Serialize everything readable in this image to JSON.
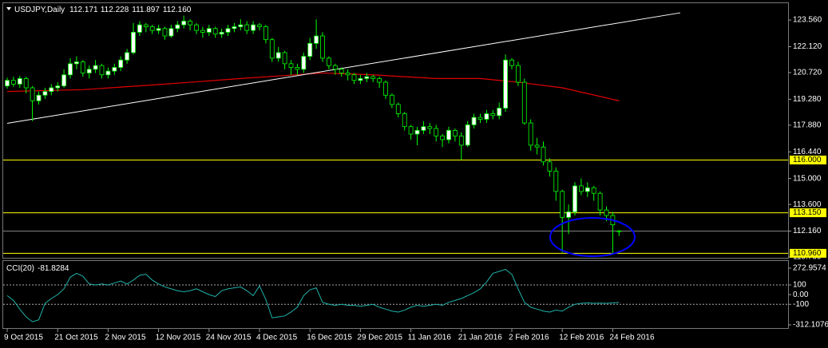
{
  "chart_data": {
    "type": "candlestick",
    "symbol": "USDJPY,Daily",
    "header_ohlc": [
      "112.171",
      "112.228",
      "111.897",
      "112.160"
    ],
    "categories": [
      "9 Oct 2015",
      null,
      null,
      null,
      null,
      null,
      null,
      null,
      "21 Oct 2015",
      null,
      null,
      null,
      null,
      null,
      null,
      null,
      "2 Nov 2015",
      null,
      null,
      null,
      null,
      null,
      null,
      null,
      "12 Nov 2015",
      null,
      null,
      null,
      null,
      null,
      null,
      null,
      "24 Nov 2015",
      null,
      null,
      null,
      null,
      null,
      null,
      null,
      "4 Dec 2015",
      null,
      null,
      null,
      null,
      null,
      null,
      null,
      "16 Dec 2015",
      null,
      null,
      null,
      null,
      null,
      null,
      null,
      "29 Dec 2015",
      null,
      null,
      null,
      null,
      null,
      null,
      null,
      "11 Jan 2016",
      null,
      null,
      null,
      null,
      null,
      null,
      null,
      "21 Jan 2016",
      null,
      null,
      null,
      null,
      null,
      null,
      null,
      "2 Feb 2016",
      null,
      null,
      null,
      null,
      null,
      null,
      null,
      "12 Feb 2016",
      null,
      null,
      null,
      null,
      null,
      null,
      null,
      "24 Feb 2016",
      null
    ],
    "candles": [
      [
        120.0,
        120.45,
        119.85,
        120.3
      ],
      [
        120.3,
        120.5,
        119.95,
        120.1
      ],
      [
        120.1,
        120.55,
        119.9,
        120.4
      ],
      [
        120.4,
        120.5,
        119.6,
        119.9
      ],
      [
        119.9,
        120.0,
        118.1,
        119.2
      ],
      [
        119.2,
        119.7,
        119.0,
        119.5
      ],
      [
        119.5,
        119.9,
        119.3,
        119.7
      ],
      [
        119.7,
        120.1,
        119.5,
        119.9
      ],
      [
        119.9,
        120.2,
        119.7,
        120.0
      ],
      [
        120.0,
        120.9,
        119.9,
        120.6
      ],
      [
        120.6,
        121.5,
        120.4,
        121.2
      ],
      [
        121.2,
        121.6,
        120.9,
        121.3
      ],
      [
        121.3,
        121.4,
        120.5,
        120.7
      ],
      [
        120.7,
        121.1,
        120.4,
        120.9
      ],
      [
        120.9,
        121.4,
        120.7,
        121.1
      ],
      [
        121.1,
        121.2,
        120.4,
        120.6
      ],
      [
        120.6,
        121.0,
        120.4,
        120.8
      ],
      [
        120.8,
        121.2,
        120.6,
        121.0
      ],
      [
        121.0,
        121.6,
        120.8,
        121.4
      ],
      [
        121.4,
        122.0,
        121.2,
        121.8
      ],
      [
        121.8,
        123.4,
        121.7,
        122.9
      ],
      [
        122.9,
        123.5,
        122.7,
        123.3
      ],
      [
        123.3,
        123.4,
        122.9,
        123.2
      ],
      [
        123.2,
        123.3,
        122.8,
        123.0
      ],
      [
        123.0,
        123.3,
        122.8,
        123.1
      ],
      [
        123.1,
        123.2,
        122.5,
        122.7
      ],
      [
        122.7,
        123.3,
        122.6,
        123.1
      ],
      [
        123.1,
        123.5,
        122.9,
        123.3
      ],
      [
        123.3,
        123.8,
        123.1,
        123.5
      ],
      [
        123.5,
        123.6,
        123.0,
        123.3
      ],
      [
        123.3,
        123.4,
        122.8,
        123.0
      ],
      [
        123.0,
        123.2,
        122.6,
        122.9
      ],
      [
        122.9,
        123.3,
        122.7,
        123.1
      ],
      [
        123.1,
        123.2,
        122.6,
        122.8
      ],
      [
        122.8,
        123.1,
        122.6,
        122.9
      ],
      [
        122.9,
        123.3,
        122.7,
        123.1
      ],
      [
        123.1,
        123.4,
        122.9,
        123.2
      ],
      [
        123.2,
        123.6,
        123.0,
        123.3
      ],
      [
        123.3,
        123.5,
        122.8,
        123.0
      ],
      [
        123.0,
        123.5,
        122.8,
        123.3
      ],
      [
        123.3,
        123.4,
        123.0,
        123.2
      ],
      [
        123.2,
        123.3,
        122.3,
        122.5
      ],
      [
        122.5,
        122.6,
        121.3,
        121.5
      ],
      [
        121.5,
        122.1,
        121.3,
        121.8
      ],
      [
        121.8,
        121.9,
        120.9,
        121.2
      ],
      [
        121.2,
        121.4,
        120.6,
        121.0
      ],
      [
        121.0,
        121.2,
        120.6,
        120.9
      ],
      [
        120.9,
        121.8,
        120.7,
        121.6
      ],
      [
        121.6,
        122.6,
        121.4,
        122.3
      ],
      [
        122.3,
        123.6,
        122.0,
        122.7
      ],
      [
        122.7,
        122.9,
        121.3,
        121.5
      ],
      [
        121.5,
        121.6,
        120.9,
        121.1
      ],
      [
        121.1,
        121.2,
        120.6,
        120.9
      ],
      [
        120.9,
        121.0,
        120.5,
        120.7
      ],
      [
        120.7,
        120.9,
        120.3,
        120.6
      ],
      [
        120.6,
        120.7,
        120.1,
        120.3
      ],
      [
        120.3,
        120.6,
        120.1,
        120.4
      ],
      [
        120.4,
        120.7,
        120.2,
        120.5
      ],
      [
        120.5,
        120.6,
        120.2,
        120.4
      ],
      [
        120.4,
        120.5,
        119.9,
        120.2
      ],
      [
        120.2,
        120.3,
        119.3,
        119.5
      ],
      [
        119.5,
        119.6,
        118.8,
        119.0
      ],
      [
        119.0,
        119.1,
        118.3,
        118.5
      ],
      [
        118.5,
        118.6,
        117.6,
        117.8
      ],
      [
        117.8,
        117.9,
        117.1,
        117.4
      ],
      [
        117.4,
        117.8,
        116.8,
        117.6
      ],
      [
        117.6,
        118.1,
        117.4,
        117.8
      ],
      [
        117.8,
        118.0,
        117.4,
        117.7
      ],
      [
        117.7,
        117.9,
        117.0,
        117.3
      ],
      [
        117.3,
        117.4,
        116.7,
        117.1
      ],
      [
        117.1,
        117.8,
        116.9,
        117.6
      ],
      [
        117.6,
        117.7,
        117.0,
        117.3
      ],
      [
        117.3,
        117.5,
        116.0,
        116.8
      ],
      [
        116.8,
        118.1,
        116.7,
        117.9
      ],
      [
        117.9,
        118.5,
        117.7,
        118.3
      ],
      [
        118.3,
        118.5,
        118.0,
        118.2
      ],
      [
        118.2,
        118.7,
        118.0,
        118.5
      ],
      [
        118.5,
        118.7,
        118.2,
        118.4
      ],
      [
        118.4,
        119.1,
        118.2,
        118.8
      ],
      [
        118.8,
        121.7,
        118.6,
        121.4
      ],
      [
        121.4,
        121.5,
        120.9,
        121.1
      ],
      [
        121.1,
        121.3,
        120.0,
        120.2
      ],
      [
        120.2,
        120.4,
        117.9,
        118.0
      ],
      [
        118.0,
        118.2,
        116.5,
        116.8
      ],
      [
        116.8,
        117.2,
        116.3,
        116.7
      ],
      [
        116.7,
        117.0,
        115.7,
        115.9
      ],
      [
        115.9,
        116.1,
        115.1,
        115.4
      ],
      [
        115.4,
        115.6,
        113.8,
        114.3
      ],
      [
        114.3,
        114.4,
        111.0,
        112.9
      ],
      [
        112.9,
        113.6,
        112.0,
        113.2
      ],
      [
        113.2,
        114.8,
        113.0,
        114.6
      ],
      [
        114.6,
        115.0,
        114.1,
        114.3
      ],
      [
        114.3,
        114.8,
        114.0,
        114.5
      ],
      [
        114.5,
        114.6,
        113.8,
        114.2
      ],
      [
        114.2,
        114.3,
        113.0,
        113.3
      ],
      [
        113.3,
        113.5,
        112.7,
        113.0
      ],
      [
        113.0,
        113.2,
        110.99,
        112.5
      ],
      [
        112.171,
        112.228,
        111.897,
        112.16
      ]
    ],
    "colors": {
      "up": "#ffffff",
      "down": "#000000",
      "outline": "#00ff00"
    },
    "ylim": [
      110.76,
      124.47
    ],
    "yticks": [
      {
        "value": 123.56,
        "label": "123.560"
      },
      {
        "value": 122.12,
        "label": "122.120"
      },
      {
        "value": 120.72,
        "label": "120.720"
      },
      {
        "value": 119.28,
        "label": "119.280"
      },
      {
        "value": 117.88,
        "label": "117.880"
      },
      {
        "value": 116.44,
        "label": "116.440"
      },
      {
        "value": 115,
        "label": "115.000"
      },
      {
        "value": 113.6,
        "label": "113.600"
      },
      {
        "value": 112.16,
        "label": "112.160"
      },
      {
        "value": 110.76,
        "label": "110.760"
      }
    ],
    "levels": [
      {
        "value": 116,
        "label": "116.000"
      },
      {
        "value": 113.15,
        "label": "113.150"
      },
      {
        "value": 110.96,
        "label": "110.960"
      }
    ],
    "level_color": "#ffff00",
    "bid_color": "#808080",
    "trendline": {
      "x": [
        0,
        106.7
      ],
      "values": [
        117.98,
        123.95
      ],
      "color": "#ffffff"
    },
    "ma": {
      "x": [
        0,
        12,
        25,
        37,
        50,
        58,
        68,
        75,
        81,
        88,
        97
      ],
      "values": [
        119.7,
        119.8,
        120.1,
        120.4,
        120.7,
        120.6,
        120.4,
        120.4,
        120.2,
        119.9,
        119.2
      ],
      "color": "#e00000"
    },
    "cci": {
      "name": "CCI(20)",
      "color": "#20b2aa",
      "values": [
        -10,
        -60,
        -150,
        -230,
        -280,
        -260,
        -90,
        -40,
        0,
        60,
        180,
        220,
        190,
        110,
        100,
        110,
        100,
        120,
        140,
        110,
        150,
        200,
        210,
        150,
        110,
        80,
        60,
        40,
        30,
        40,
        60,
        30,
        0,
        -20,
        40,
        60,
        70,
        80,
        40,
        -10,
        90,
        -50,
        -240,
        -230,
        -220,
        -180,
        -130,
        -10,
        50,
        70,
        -80,
        -100,
        -110,
        -100,
        -110,
        -110,
        -120,
        -110,
        -100,
        -130,
        -150,
        -170,
        -180,
        -160,
        -130,
        -110,
        -120,
        -110,
        -100,
        -110,
        -80,
        -60,
        -40,
        -10,
        20,
        60,
        130,
        220,
        240,
        260,
        210,
        60,
        -80,
        -130,
        -150,
        -170,
        -180,
        -160,
        -170,
        -130,
        -100,
        -90,
        -85,
        -90,
        -88,
        -90,
        -86,
        -81.8284
      ],
      "ylim": [
        -312.1076,
        272.9574
      ],
      "yticks": [
        272.9574,
        100,
        {
          "value": 0,
          "label": "0.00"
        },
        -100,
        -312.1076
      ],
      "levels": [
        100,
        -100
      ]
    }
  }
}
